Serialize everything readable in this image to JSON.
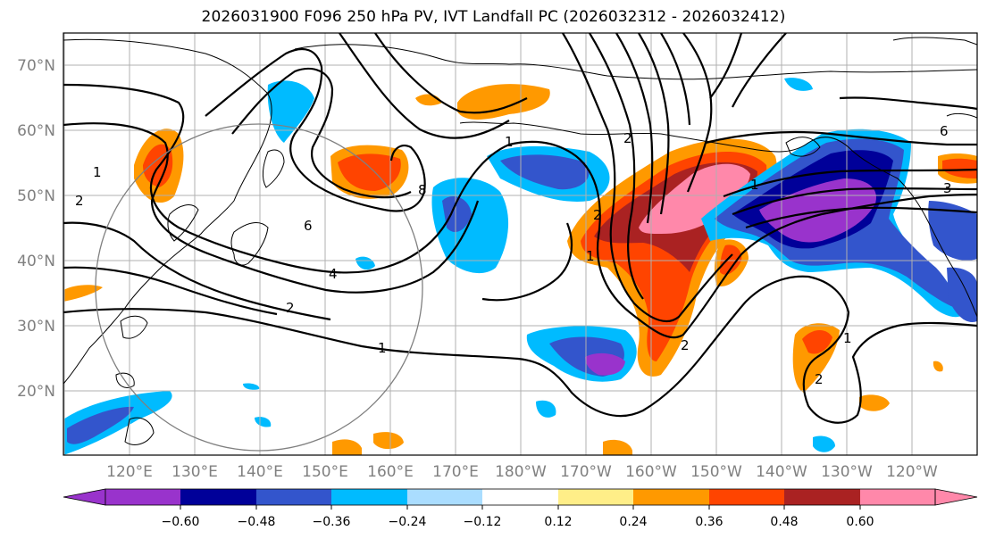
{
  "title": "2026031900 F096 250 hPa PV, IVT Landfall PC (2026032312 - 2026032412)",
  "latitude_labels": [
    "70°N",
    "60°N",
    "50°N",
    "40°N",
    "30°N",
    "20°N"
  ],
  "longitude_labels": [
    "120°E",
    "130°E",
    "140°E",
    "150°E",
    "160°E",
    "170°E",
    "180°W",
    "170°W",
    "160°W",
    "150°W",
    "140°W",
    "130°W",
    "120°W"
  ],
  "colorbar": {
    "tick_labels": [
      "−0.60",
      "−0.48",
      "−0.36",
      "−0.24",
      "−0.12",
      "0.12",
      "0.24",
      "0.36",
      "0.48",
      "0.60"
    ],
    "colors": [
      "#9933cc",
      "#000099",
      "#3355cc",
      "#00bbff",
      "#aaddff",
      "#ffffff",
      "#ffee88",
      "#ff9900",
      "#ff4400",
      "#aa2222",
      "#ff88aa"
    ],
    "extend": "both"
  },
  "contour_labels": [
    "1",
    "2",
    "4",
    "6",
    "8",
    "1",
    "2",
    "1",
    "2",
    "6",
    "3",
    "1",
    "2",
    "2",
    "1",
    "1",
    "2"
  ],
  "colors": {
    "positive_strong": "#ff88aa",
    "positive_mid": "#ff4400",
    "negative_strong": "#9933cc",
    "grid": "#b0b0b0",
    "contour": "#000000",
    "circle": "#808080"
  }
}
